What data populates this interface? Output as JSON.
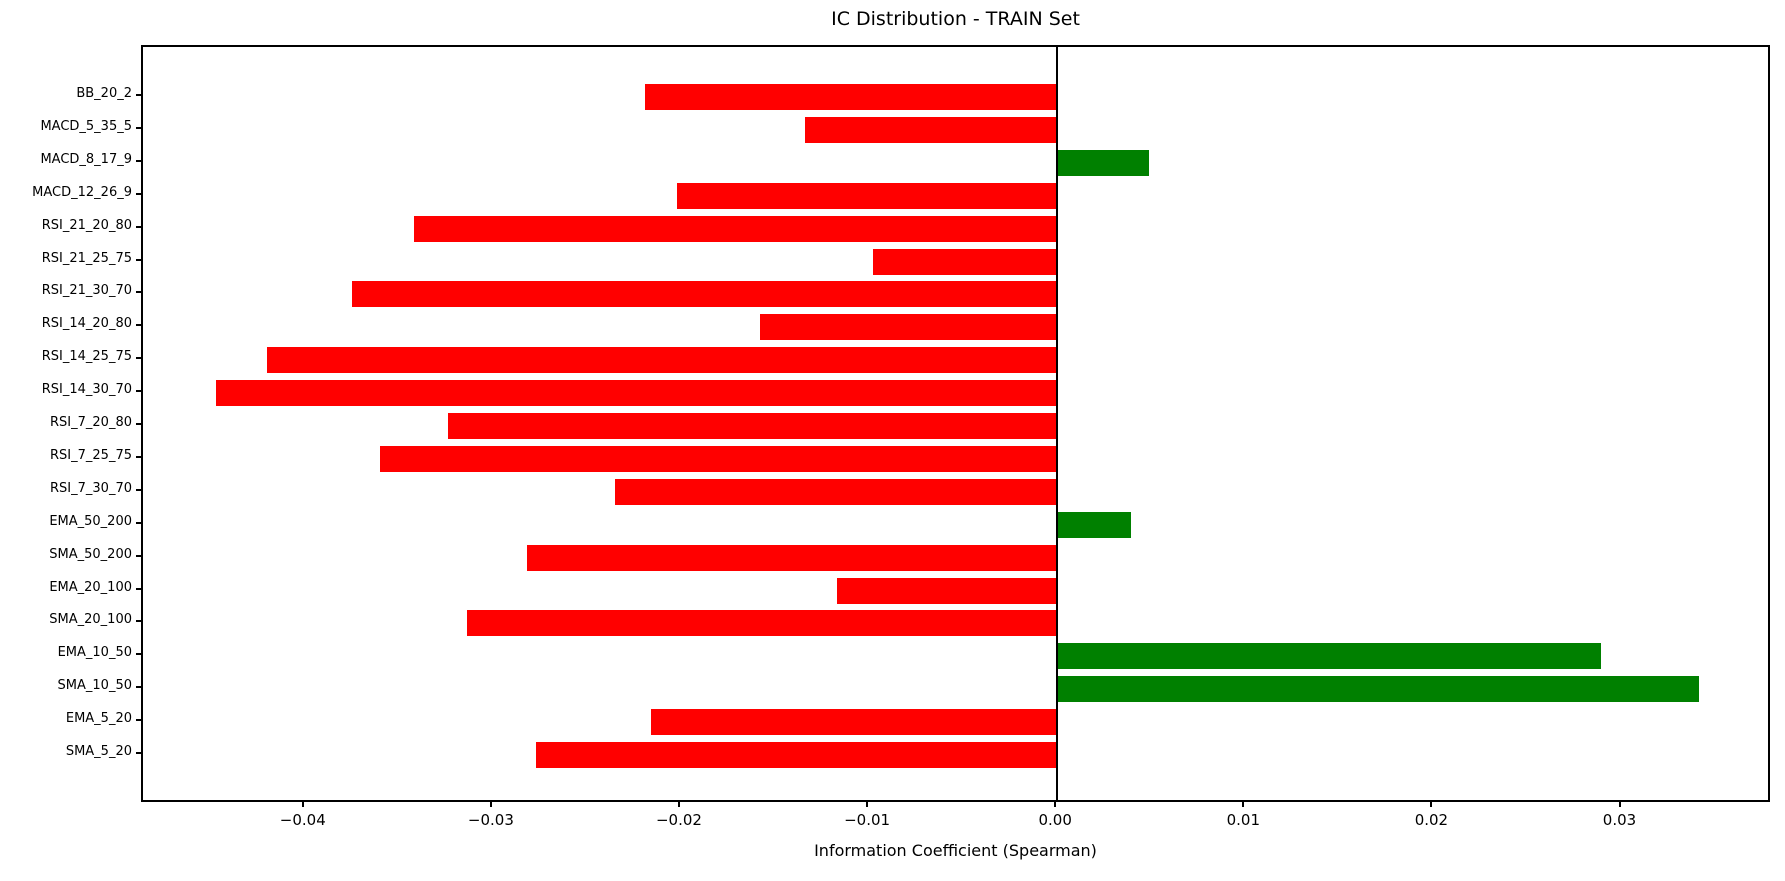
{
  "header": {
    "title": "IC Distribution - TRAIN Set"
  },
  "axes": {
    "xlabel": "Information Coefficient (Spearman)",
    "xtick_labels": [
      "−0.04",
      "−0.03",
      "−0.02",
      "−0.01",
      "0.00",
      "0.01",
      "0.02",
      "0.03"
    ]
  },
  "colors": {
    "positive_bar": "#008000",
    "negative_bar": "#ff0000",
    "zero_line": "#000000",
    "spine": "#000000",
    "background": "#ffffff"
  },
  "chart_data": {
    "type": "bar",
    "orientation": "horizontal",
    "title": "IC Distribution - TRAIN Set",
    "xlabel": "Information Coefficient (Spearman)",
    "ylabel": "",
    "categories": [
      "BB_20_2",
      "MACD_5_35_5",
      "MACD_8_17_9",
      "MACD_12_26_9",
      "RSI_21_20_80",
      "RSI_21_25_75",
      "RSI_21_30_70",
      "RSI_14_20_80",
      "RSI_14_25_75",
      "RSI_14_30_70",
      "RSI_7_20_80",
      "RSI_7_25_75",
      "RSI_7_30_70",
      "EMA_50_200",
      "SMA_50_200",
      "EMA_20_100",
      "SMA_20_100",
      "EMA_10_50",
      "SMA_10_50",
      "EMA_5_20",
      "SMA_5_20"
    ],
    "values": [
      -0.0219,
      -0.0134,
      0.0049,
      -0.0202,
      -0.0342,
      -0.0098,
      -0.0375,
      -0.0158,
      -0.042,
      -0.0447,
      -0.0324,
      -0.036,
      -0.0235,
      0.0039,
      -0.0282,
      -0.0117,
      -0.0314,
      0.0289,
      0.0341,
      -0.0216,
      -0.0277
    ],
    "xlim": [
      -0.0486,
      0.038
    ],
    "xticks": [
      -0.04,
      -0.03,
      -0.02,
      -0.01,
      0.0,
      0.01,
      0.02,
      0.03
    ],
    "grid": false,
    "legend": false,
    "color_rule": "green (#008000) if value > 0 else red (#ff0000)",
    "zero_reference_line": 0.0
  }
}
